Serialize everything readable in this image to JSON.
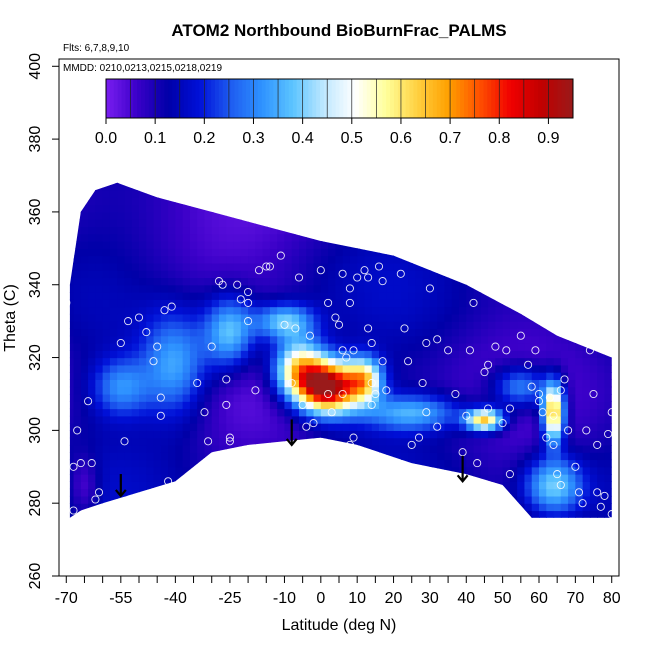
{
  "chart_data": {
    "type": "heatmap",
    "title": "ATOM2 Northbound BioBurnFrac_PALMS",
    "subtitle_flights": "Flts: 6,7,8,9,10",
    "subtitle_dates": "MMDD: 0210,0213,0215,0218,0219",
    "xlabel": "Latitude (deg N)",
    "ylabel": "Theta (C)",
    "xlim": [
      -72,
      82
    ],
    "ylim": [
      260,
      402
    ],
    "x_ticks": [
      -70,
      -55,
      -40,
      -25,
      -10,
      0,
      10,
      20,
      30,
      40,
      50,
      60,
      70,
      80
    ],
    "x_tick_labels": [
      "-70",
      "-55",
      "-40",
      "-25",
      "-10",
      "0",
      "10",
      "20",
      "30",
      "40",
      "50",
      "60",
      "70",
      "80"
    ],
    "x_minor_ticks": [
      -65,
      -60,
      -50,
      -45,
      -35,
      -30,
      -20,
      -15,
      -5,
      5,
      15,
      25,
      35,
      45,
      55,
      65,
      75
    ],
    "y_ticks": [
      260,
      280,
      300,
      320,
      340,
      360,
      380,
      400
    ],
    "y_tick_labels": [
      "260",
      "280",
      "300",
      "320",
      "340",
      "360",
      "380",
      "400"
    ],
    "colorbar": {
      "min": 0.0,
      "max": 0.95,
      "ticks": [
        0.0,
        0.1,
        0.2,
        0.3,
        0.4,
        0.5,
        0.6,
        0.7,
        0.8,
        0.9
      ],
      "tick_labels": [
        "0.0",
        "0.1",
        "0.2",
        "0.3",
        "0.4",
        "0.5",
        "0.6",
        "0.7",
        "0.8",
        "0.9"
      ],
      "colors": [
        "#7a1ef0",
        "#3a00c8",
        "#0000a8",
        "#0010d8",
        "#1e5cf0",
        "#2e92ff",
        "#5cc4ff",
        "#bfe8ff",
        "#ffffff",
        "#ffff9a",
        "#ffd040",
        "#ffa000",
        "#ff5000",
        "#f00000",
        "#c00000",
        "#9a1a1a"
      ]
    },
    "domain_outline": [
      [
        -69,
        276
      ],
      [
        -69,
        340
      ],
      [
        -66,
        360
      ],
      [
        -62,
        366
      ],
      [
        -56,
        368
      ],
      [
        -45,
        364
      ],
      [
        -30,
        360
      ],
      [
        -15,
        356
      ],
      [
        0,
        352
      ],
      [
        20,
        348
      ],
      [
        40,
        340
      ],
      [
        55,
        332
      ],
      [
        65,
        326
      ],
      [
        80,
        320
      ],
      [
        80,
        276
      ],
      [
        58,
        276
      ],
      [
        50,
        285
      ],
      [
        40,
        288
      ],
      [
        25,
        291
      ],
      [
        10,
        296
      ],
      [
        0,
        298
      ],
      [
        -10,
        297
      ],
      [
        -20,
        296
      ],
      [
        -30,
        294
      ],
      [
        -40,
        286
      ],
      [
        -50,
        283
      ],
      [
        -60,
        280
      ],
      [
        -66,
        278
      ]
    ],
    "field_base_value": 0.1,
    "field_features": [
      {
        "lat": 2,
        "theta": 312,
        "peak": 0.85,
        "lat_width": 8,
        "theta_width": 7
      },
      {
        "lat": -6,
        "theta": 317,
        "peak": 0.5,
        "lat_width": 7,
        "theta_width": 8
      },
      {
        "lat": 12,
        "theta": 314,
        "peak": 0.45,
        "lat_width": 5,
        "theta_width": 6
      },
      {
        "lat": 45,
        "theta": 303,
        "peak": 0.55,
        "lat_width": 5,
        "theta_width": 3
      },
      {
        "lat": 64,
        "theta": 305,
        "peak": 0.6,
        "lat_width": 3,
        "theta_width": 8
      },
      {
        "lat": 64,
        "theta": 285,
        "peak": 0.3,
        "lat_width": 8,
        "theta_width": 8
      },
      {
        "lat": -25,
        "theta": 327,
        "peak": 0.3,
        "lat_width": 7,
        "theta_width": 10
      },
      {
        "lat": -40,
        "theta": 318,
        "peak": 0.25,
        "lat_width": 9,
        "theta_width": 14
      },
      {
        "lat": -55,
        "theta": 312,
        "peak": 0.2,
        "lat_width": 8,
        "theta_width": 8
      },
      {
        "lat": 25,
        "theta": 305,
        "peak": 0.25,
        "lat_width": 14,
        "theta_width": 5
      },
      {
        "lat": -10,
        "theta": 330,
        "peak": 0.3,
        "lat_width": 8,
        "theta_width": 5
      },
      {
        "lat": 55,
        "theta": 312,
        "peak": 0.25,
        "lat_width": 8,
        "theta_width": 6
      },
      {
        "lat": -65,
        "theta": 285,
        "peak": -0.1,
        "lat_width": 4,
        "theta_width": 8
      },
      {
        "lat": -40,
        "theta": 345,
        "peak": -0.05,
        "lat_width": 25,
        "theta_width": 15
      }
    ],
    "sample_points": [
      [
        -70,
        335
      ],
      [
        -68,
        360
      ],
      [
        -67,
        300
      ],
      [
        -68,
        290
      ],
      [
        -68,
        278
      ],
      [
        -66,
        291
      ],
      [
        -64,
        308
      ],
      [
        -63,
        291
      ],
      [
        -62,
        281
      ],
      [
        -61,
        283
      ],
      [
        -55,
        324
      ],
      [
        -53,
        330
      ],
      [
        -54,
        297
      ],
      [
        -50,
        331
      ],
      [
        -48,
        327
      ],
      [
        -46,
        319
      ],
      [
        -45,
        323
      ],
      [
        -44,
        309
      ],
      [
        -44,
        304
      ],
      [
        -42,
        286
      ],
      [
        -43,
        333
      ],
      [
        -41,
        334
      ],
      [
        -34,
        313
      ],
      [
        -32,
        305
      ],
      [
        -31,
        297
      ],
      [
        -30,
        323
      ],
      [
        -28,
        341
      ],
      [
        -27,
        340
      ],
      [
        -26,
        314
      ],
      [
        -26,
        307
      ],
      [
        -25,
        298
      ],
      [
        -25,
        297
      ],
      [
        -23,
        340
      ],
      [
        -22,
        336
      ],
      [
        -20,
        338
      ],
      [
        -20,
        330
      ],
      [
        -20,
        335
      ],
      [
        -18,
        311
      ],
      [
        -17,
        344
      ],
      [
        -15,
        345
      ],
      [
        -14,
        345
      ],
      [
        -11,
        348
      ],
      [
        -10,
        329
      ],
      [
        -8,
        313
      ],
      [
        -7,
        328
      ],
      [
        -6,
        342
      ],
      [
        -5,
        307
      ],
      [
        -4,
        301
      ],
      [
        -3,
        326
      ],
      [
        -2,
        302
      ],
      [
        0,
        344
      ],
      [
        2,
        335
      ],
      [
        2,
        310
      ],
      [
        3,
        305
      ],
      [
        4,
        331
      ],
      [
        5,
        329
      ],
      [
        6,
        343
      ],
      [
        6,
        322
      ],
      [
        6,
        310
      ],
      [
        7,
        320
      ],
      [
        8,
        296
      ],
      [
        8,
        335
      ],
      [
        8,
        339
      ],
      [
        9,
        322
      ],
      [
        9,
        298
      ],
      [
        10,
        342
      ],
      [
        12,
        344
      ],
      [
        13,
        342
      ],
      [
        13,
        328
      ],
      [
        14,
        313
      ],
      [
        14,
        324
      ],
      [
        14,
        307
      ],
      [
        15,
        310
      ],
      [
        16,
        345
      ],
      [
        17,
        319
      ],
      [
        17,
        341
      ],
      [
        18,
        311
      ],
      [
        20,
        289
      ],
      [
        22,
        343
      ],
      [
        23,
        328
      ],
      [
        24,
        319
      ],
      [
        25,
        296
      ],
      [
        27,
        298
      ],
      [
        28,
        313
      ],
      [
        29,
        305
      ],
      [
        29,
        324
      ],
      [
        30,
        339
      ],
      [
        32,
        325
      ],
      [
        32,
        301
      ],
      [
        35,
        322
      ],
      [
        37,
        310
      ],
      [
        39,
        294
      ],
      [
        40,
        304
      ],
      [
        41,
        322
      ],
      [
        42,
        335
      ],
      [
        43,
        291
      ],
      [
        45,
        316
      ],
      [
        46,
        318
      ],
      [
        46,
        306
      ],
      [
        48,
        323
      ],
      [
        50,
        302
      ],
      [
        51,
        322
      ],
      [
        52,
        306
      ],
      [
        52,
        288
      ],
      [
        55,
        326
      ],
      [
        57,
        318
      ],
      [
        58,
        312
      ],
      [
        59,
        322
      ],
      [
        60,
        310
      ],
      [
        60,
        308
      ],
      [
        61,
        305
      ],
      [
        62,
        298
      ],
      [
        63,
        309
      ],
      [
        64,
        304
      ],
      [
        64,
        296
      ],
      [
        65,
        288
      ],
      [
        66,
        285
      ],
      [
        66,
        311
      ],
      [
        67,
        314
      ],
      [
        68,
        300
      ],
      [
        70,
        290
      ],
      [
        71,
        283
      ],
      [
        72,
        280
      ],
      [
        73,
        300
      ],
      [
        74,
        322
      ],
      [
        75,
        310
      ],
      [
        76,
        296
      ],
      [
        76,
        283
      ],
      [
        77,
        279
      ],
      [
        78,
        282
      ],
      [
        79,
        299
      ],
      [
        80,
        305
      ],
      [
        80,
        322
      ],
      [
        80,
        277
      ]
    ],
    "arrows": [
      {
        "lat": -55,
        "theta_top": 288,
        "theta_tip": 282
      },
      {
        "lat": -8,
        "theta_top": 303,
        "theta_tip": 296
      },
      {
        "lat": 39,
        "theta_top": 293,
        "theta_tip": 286
      }
    ]
  }
}
